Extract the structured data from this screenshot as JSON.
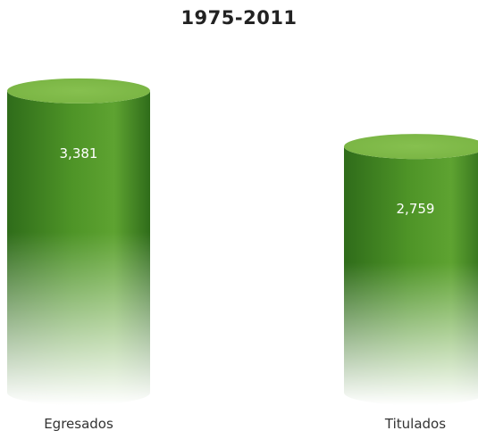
{
  "chart_data": {
    "type": "bar",
    "style": "3d-cylinder",
    "title": "1975-2011",
    "categories": [
      "Egresados",
      "Titulados"
    ],
    "values": [
      3381,
      2759
    ],
    "value_labels": [
      "3,381",
      "2,759"
    ],
    "xlabel": "",
    "ylabel": "",
    "ylim": [
      0,
      3800
    ],
    "grid": false,
    "legend": "none",
    "colors": {
      "bar_top": "#79b443",
      "bar_body": "#4e9427",
      "bar_body_dark": "#2f6c1a",
      "label_text": "#ffffff"
    }
  }
}
